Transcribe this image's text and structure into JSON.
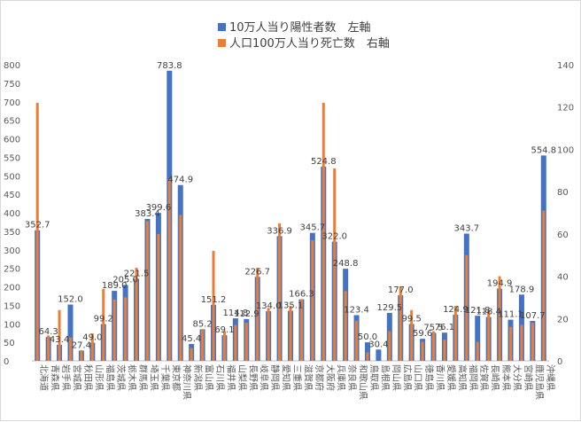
{
  "chart_data": {
    "type": "bar",
    "legend": {
      "position": "top"
    },
    "grid": false,
    "y_left": {
      "min": 0,
      "max": 800,
      "step": 50
    },
    "y_right": {
      "min": 0,
      "max": 140,
      "step": 20
    },
    "categories": [
      "北海道",
      "青森県",
      "岩手県",
      "宮城県",
      "秋田県",
      "山形県",
      "福島県",
      "茨城県",
      "栃木県",
      "群馬県",
      "埼玉県",
      "千葉県",
      "東京都",
      "神奈川県",
      "新潟県",
      "富山県",
      "石川県",
      "福井県",
      "山梨県",
      "長野県",
      "岐阜県",
      "静岡県",
      "愛知県",
      "三重県",
      "滋賀県",
      "京都府",
      "大阪府",
      "兵庫県",
      "奈良県",
      "和歌山県",
      "鳥取県",
      "島根県",
      "岡山県",
      "広島県",
      "山口県",
      "徳島県",
      "香川県",
      "愛媛県",
      "高知県",
      "福岡県",
      "佐賀県",
      "長崎県",
      "熊本県",
      "大分県",
      "宮崎県",
      "鹿児島県",
      "沖縄県"
    ],
    "series": [
      {
        "name": "10万人当り陽性者数　左軸",
        "axis": "left",
        "color": "#4472C4",
        "labels": [
          "352.7",
          "64.3",
          "43.4",
          "152.0",
          "27.4",
          "49.0",
          "99.2",
          "189.0",
          "205.0",
          "221.5",
          "383.4",
          "399.6",
          "783.8",
          "474.9",
          "45.4",
          "85.2",
          "151.2",
          "69.1",
          "114.8",
          "112.9",
          "226.7",
          "134.0",
          "336.9",
          "135.1",
          "166.3",
          "345.7",
          "524.8",
          "322.0",
          "248.8",
          "123.4",
          "50.0",
          "30.4",
          "129.5",
          "177.0",
          "99.5",
          "59.6",
          "75.5",
          "76.1",
          "124.9",
          "343.7",
          "121.8",
          "118.4",
          "194.9",
          "111.1",
          "178.9",
          "107.7",
          "554.8"
        ],
        "values": [
          352.7,
          64.3,
          43.4,
          152.0,
          27.4,
          49.0,
          99.2,
          189.0,
          205.0,
          221.5,
          383.4,
          399.6,
          783.8,
          474.9,
          45.4,
          85.2,
          151.2,
          69.1,
          114.8,
          112.9,
          226.7,
          134.0,
          336.9,
          135.1,
          166.3,
          345.7,
          524.8,
          322.0,
          248.8,
          123.4,
          50.0,
          30.4,
          129.5,
          177.0,
          99.5,
          59.6,
          75.5,
          76.1,
          124.9,
          343.7,
          121.8,
          118.4,
          194.9,
          111.1,
          178.9,
          107.7,
          554.8
        ]
      },
      {
        "name": "人口100万人当り死亡数　右軸",
        "axis": "right",
        "color": "#ED7D31",
        "values": [
          122,
          12,
          24,
          11,
          5,
          13,
          34,
          29,
          30,
          44,
          66,
          60,
          86,
          69,
          6,
          15,
          52,
          14,
          17,
          18,
          44,
          25,
          65,
          26,
          29,
          57,
          122,
          91,
          33,
          19,
          4,
          0,
          14,
          35,
          24,
          9,
          14,
          10,
          26,
          50,
          9,
          24,
          40,
          16,
          17,
          18,
          71
        ]
      }
    ]
  }
}
